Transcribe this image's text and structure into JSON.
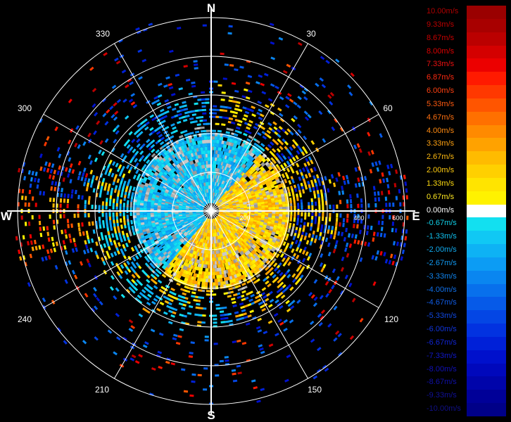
{
  "compass": {
    "north": "N",
    "south": "S",
    "east": "E",
    "west": "W"
  },
  "bearings": [
    "30",
    "60",
    "120",
    "150",
    "210",
    "240",
    "300",
    "330"
  ],
  "range_labels": [
    "200",
    "400",
    "600"
  ],
  "legend": [
    {
      "label": "10.00m/s",
      "color": "#9a0000",
      "text_color": "#b00000"
    },
    {
      "label": "9.33m/s",
      "color": "#a80000",
      "text_color": "#bb0000"
    },
    {
      "label": "8.67m/s",
      "color": "#bb0000",
      "text_color": "#c80000"
    },
    {
      "label": "8.00m/s",
      "color": "#d40000",
      "text_color": "#dd0000"
    },
    {
      "label": "7.33m/s",
      "color": "#ec0000",
      "text_color": "#ee1010"
    },
    {
      "label": "6.87m/s",
      "color": "#ff1a00",
      "text_color": "#ff2a10"
    },
    {
      "label": "6.00m/s",
      "color": "#ff3800",
      "text_color": "#ff4010"
    },
    {
      "label": "5.33m/s",
      "color": "#ff5500",
      "text_color": "#ff5a10"
    },
    {
      "label": "4.67m/s",
      "color": "#ff7000",
      "text_color": "#ff7010"
    },
    {
      "label": "4.00m/s",
      "color": "#ff8a00",
      "text_color": "#ff8a10"
    },
    {
      "label": "3.33m/s",
      "color": "#ffa200",
      "text_color": "#ffa210"
    },
    {
      "label": "2.67m/s",
      "color": "#ffbb00",
      "text_color": "#ffba10"
    },
    {
      "label": "2.00m/s",
      "color": "#ffd000",
      "text_color": "#ffcc10"
    },
    {
      "label": "1.33m/s",
      "color": "#ffe400",
      "text_color": "#ffdc10"
    },
    {
      "label": "0.67m/s",
      "color": "#fff200",
      "text_color": "#ffe820"
    },
    {
      "label": "0.00m/s",
      "color": "#ffffff",
      "text_color": "#ffffff"
    },
    {
      "label": "-0.67m/s",
      "color": "#12e0f0",
      "text_color": "#10d0e8"
    },
    {
      "label": "-1.33m/s",
      "color": "#10c8f4",
      "text_color": "#10c0ee"
    },
    {
      "label": "-2.00m/s",
      "color": "#0eb2f4",
      "text_color": "#10aaee"
    },
    {
      "label": "-2.67m/s",
      "color": "#0c9cf4",
      "text_color": "#1098f0"
    },
    {
      "label": "-3.33m/s",
      "color": "#0a86f0",
      "text_color": "#1084ee"
    },
    {
      "label": "-4.00m/s",
      "color": "#0870ec",
      "text_color": "#1070ea"
    },
    {
      "label": "-4.67m/s",
      "color": "#065ae8",
      "text_color": "#105ce6"
    },
    {
      "label": "-5.33m/s",
      "color": "#0446e4",
      "text_color": "#1048e0"
    },
    {
      "label": "-6.00m/s",
      "color": "#0232e0",
      "text_color": "#1034dc"
    },
    {
      "label": "-6.67m/s",
      "color": "#0020d8",
      "text_color": "#1024d4"
    },
    {
      "label": "-7.33m/s",
      "color": "#0010cc",
      "text_color": "#1018c8"
    },
    {
      "label": "-8.00m/s",
      "color": "#0008bc",
      "text_color": "#1010b8"
    },
    {
      "label": "-8.67m/s",
      "color": "#0004aa",
      "text_color": "#1010a8"
    },
    {
      "label": "-9.33m/s",
      "color": "#000098",
      "text_color": "#101098"
    },
    {
      "label": "-10.00m/s",
      "color": "#000088",
      "text_color": "#101088"
    }
  ]
}
